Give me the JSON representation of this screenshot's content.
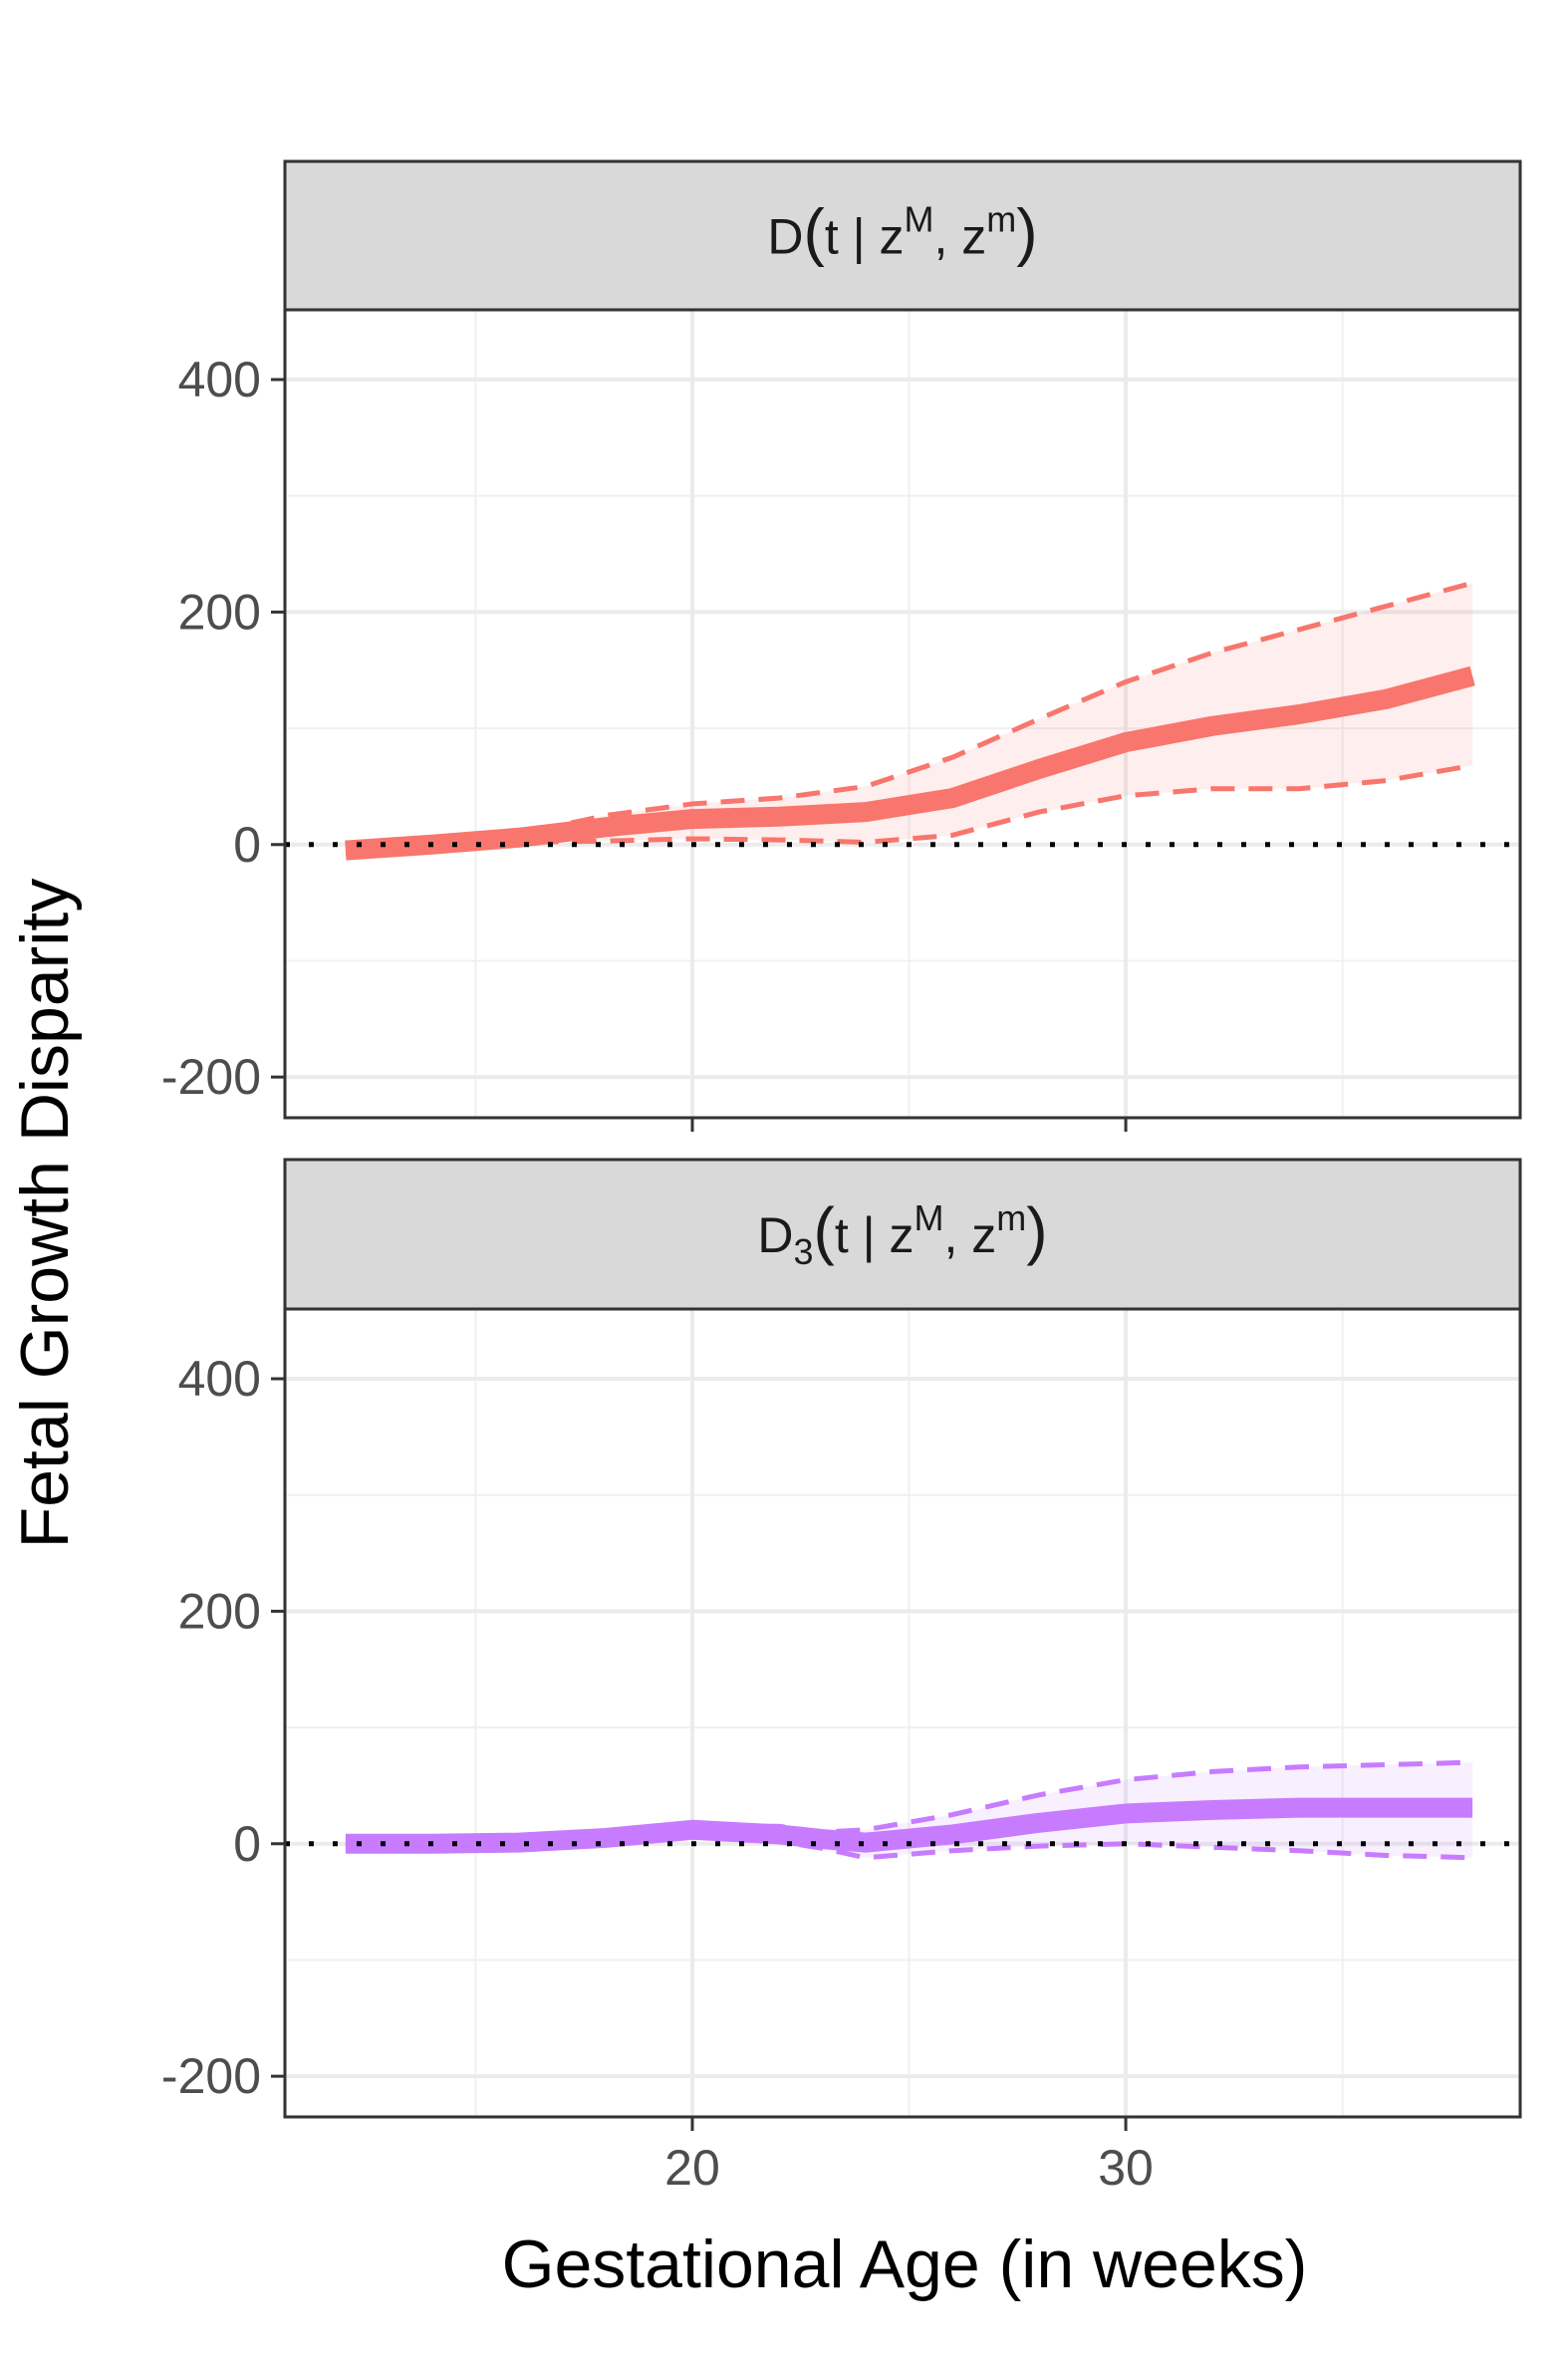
{
  "chart_data": {
    "type": "line",
    "xlabel": "Gestational Age (in weeks)",
    "ylabel": "Fetal Growth Disparity",
    "x_ticks": [
      20,
      30
    ],
    "y_ticks": [
      -200,
      0,
      200,
      400
    ],
    "xlim": [
      10.6,
      39.1
    ],
    "ylim": [
      -235,
      460
    ],
    "grid": true,
    "reference_line": 0,
    "panels": [
      {
        "strip": {
          "main": "D",
          "sub": "",
          "paren_open": "(",
          "body": "t | z",
          "sup1": "M",
          "sep": ",  z",
          "sup2": "m",
          "paren_close": ")"
        },
        "color": "#F8766D",
        "x": [
          12,
          14,
          16,
          18,
          20,
          22,
          24,
          26,
          28,
          30,
          32,
          34,
          36,
          38
        ],
        "estimate": [
          -5,
          0,
          6,
          15,
          22,
          24,
          28,
          40,
          65,
          88,
          102,
          112,
          125,
          145
        ],
        "lower": [
          -7,
          -3,
          2,
          3,
          5,
          4,
          2,
          8,
          28,
          42,
          48,
          48,
          55,
          68
        ],
        "upper": [
          -3,
          2,
          9,
          25,
          35,
          40,
          50,
          75,
          108,
          140,
          165,
          185,
          205,
          225
        ]
      },
      {
        "strip": {
          "main": "D",
          "sub": "3",
          "paren_open": "(",
          "body": "t | z",
          "sup1": "M",
          "sep": ",  z",
          "sup2": "m",
          "paren_close": ")"
        },
        "color": "#C77CFF",
        "x": [
          12,
          14,
          16,
          18,
          20,
          21,
          22,
          23,
          24,
          26,
          28,
          30,
          32,
          34,
          36,
          38
        ],
        "estimate": [
          0,
          0,
          1,
          5,
          12,
          10,
          8,
          4,
          1,
          8,
          18,
          26,
          29,
          31,
          31,
          31
        ],
        "lower": [
          -1,
          -2,
          -1,
          3,
          6,
          5,
          2,
          -4,
          -12,
          -6,
          -2,
          0,
          -3,
          -6,
          -10,
          -12
        ],
        "upper": [
          1,
          1,
          3,
          8,
          18,
          15,
          15,
          10,
          12,
          25,
          42,
          55,
          62,
          66,
          68,
          70
        ]
      }
    ]
  }
}
